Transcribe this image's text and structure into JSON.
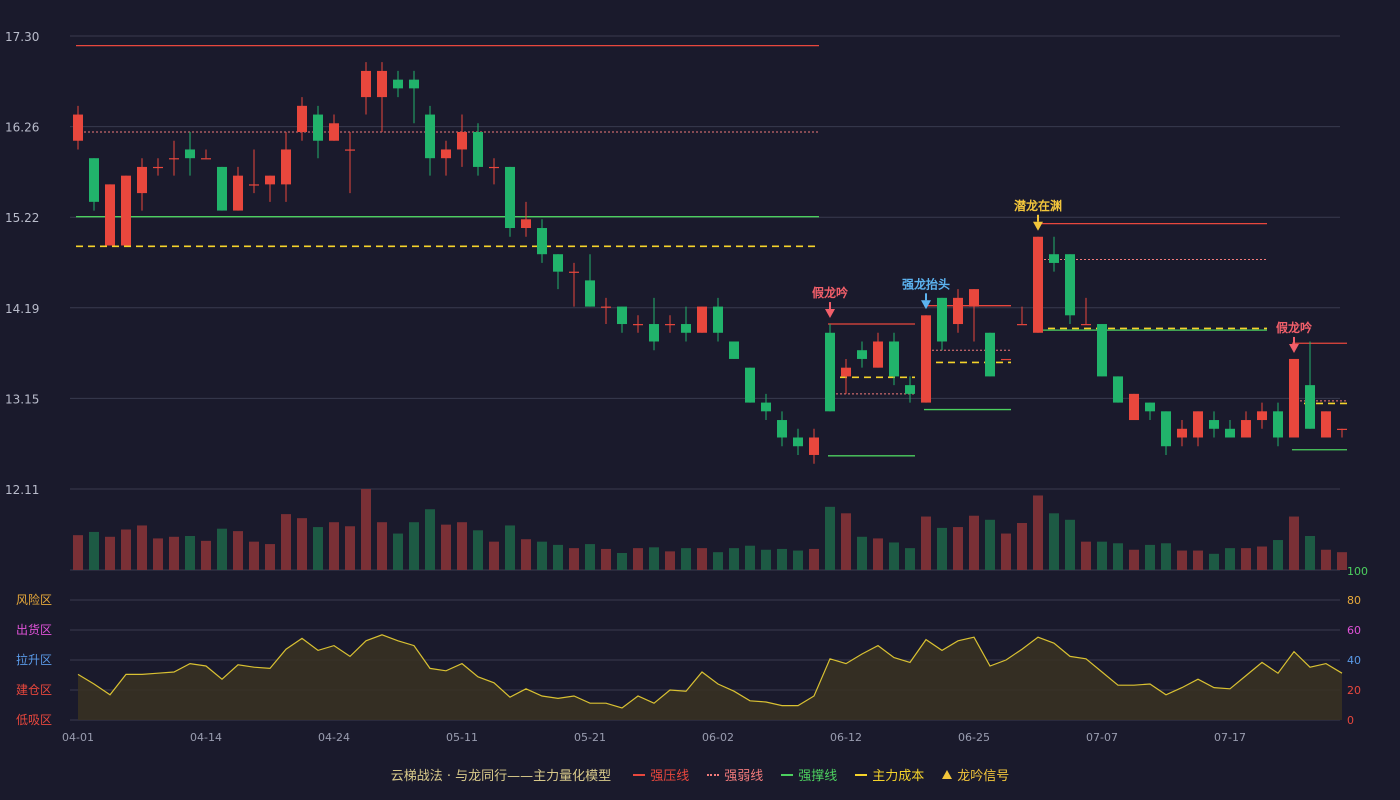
{
  "colors": {
    "background": "#1a1a2c",
    "grid": "#393a4e",
    "up": "#e8473d",
    "down": "#21b36b",
    "vol_up": "#7a3036",
    "vol_down": "#1d5a44",
    "strong_pressure": "#e8473d",
    "strong_weak": "#f07a7a",
    "support": "#4ccf5f",
    "cost": "#f5d32a",
    "oscillator": "#d9c132",
    "signal_fake": "#f25f6a",
    "signal_up": "#5cb3f0",
    "signal_hidden": "#f2c53b"
  },
  "chart_data": {
    "type": "candlestick",
    "price_axis": {
      "ticks": [
        "17.30",
        "16.26",
        "15.22",
        "14.19",
        "13.15",
        "12.11"
      ],
      "range": [
        12.11,
        17.3
      ]
    },
    "volume_axis": {
      "max_label": "100"
    },
    "oscillator_axis": {
      "ticks": [
        "80",
        "60",
        "40",
        "20",
        "0"
      ],
      "range": [
        0,
        100
      ],
      "zones": [
        "风险区",
        "出货区",
        "拉升区",
        "建仓区",
        "低吸区"
      ],
      "zone_colors": [
        "#e8a93a",
        "#e052d8",
        "#5a9ae8",
        "#e8473d",
        "#e8473d"
      ],
      "tick_colors": [
        "#e8a93a",
        "#e052d8",
        "#5a9ae8",
        "#e8473d",
        "#e8473d"
      ]
    },
    "date_labels": [
      {
        "i": 0,
        "label": "04-01"
      },
      {
        "i": 8,
        "label": "04-14"
      },
      {
        "i": 16,
        "label": "04-24"
      },
      {
        "i": 24,
        "label": "05-11"
      },
      {
        "i": 32,
        "label": "05-21"
      },
      {
        "i": 40,
        "label": "06-02"
      },
      {
        "i": 48,
        "label": "06-12"
      },
      {
        "i": 56,
        "label": "06-25"
      },
      {
        "i": 64,
        "label": "07-07"
      },
      {
        "i": 72,
        "label": "07-17"
      }
    ],
    "candles": [
      [
        16.1,
        16.4,
        16.5,
        16.0,
        43
      ],
      [
        15.9,
        15.4,
        15.9,
        15.3,
        47
      ],
      [
        14.9,
        15.6,
        15.6,
        14.9,
        41
      ],
      [
        14.9,
        15.7,
        15.7,
        14.9,
        50
      ],
      [
        15.5,
        15.8,
        15.9,
        15.3,
        55
      ],
      [
        15.8,
        15.8,
        15.9,
        15.7,
        39
      ],
      [
        15.9,
        15.9,
        16.1,
        15.7,
        41
      ],
      [
        16.0,
        15.9,
        16.2,
        15.7,
        42
      ],
      [
        15.9,
        15.9,
        16.0,
        15.9,
        36
      ],
      [
        15.8,
        15.3,
        15.8,
        15.3,
        51
      ],
      [
        15.3,
        15.7,
        15.8,
        15.3,
        48
      ],
      [
        15.6,
        15.6,
        16.0,
        15.5,
        35
      ],
      [
        15.6,
        15.7,
        15.7,
        15.4,
        32
      ],
      [
        15.6,
        16.0,
        16.2,
        15.4,
        69
      ],
      [
        16.2,
        16.5,
        16.6,
        16.1,
        64
      ],
      [
        16.4,
        16.1,
        16.5,
        15.9,
        53
      ],
      [
        16.1,
        16.3,
        16.4,
        16.1,
        59
      ],
      [
        16.0,
        16.0,
        16.2,
        15.5,
        54
      ],
      [
        16.6,
        16.9,
        17.0,
        16.4,
        100
      ],
      [
        16.6,
        16.9,
        17.0,
        16.2,
        59
      ],
      [
        16.8,
        16.7,
        16.9,
        16.6,
        45
      ],
      [
        16.8,
        16.7,
        16.9,
        16.3,
        59
      ],
      [
        16.4,
        15.9,
        16.5,
        15.7,
        75
      ],
      [
        15.9,
        16.0,
        16.1,
        15.7,
        56
      ],
      [
        16.0,
        16.2,
        16.4,
        15.8,
        59
      ],
      [
        16.2,
        15.8,
        16.3,
        15.7,
        49
      ],
      [
        15.8,
        15.8,
        15.9,
        15.6,
        35
      ],
      [
        15.8,
        15.1,
        15.8,
        15.0,
        55
      ],
      [
        15.1,
        15.2,
        15.4,
        15.0,
        38
      ],
      [
        15.1,
        14.8,
        15.2,
        14.7,
        35
      ],
      [
        14.8,
        14.6,
        14.8,
        14.4,
        31
      ],
      [
        14.6,
        14.6,
        14.7,
        14.2,
        27
      ],
      [
        14.5,
        14.2,
        14.8,
        14.2,
        32
      ],
      [
        14.2,
        14.2,
        14.3,
        14.0,
        26
      ],
      [
        14.2,
        14.0,
        14.2,
        13.9,
        21
      ],
      [
        14.0,
        14.0,
        14.1,
        13.9,
        27
      ],
      [
        14.0,
        13.8,
        14.3,
        13.7,
        28
      ],
      [
        14.0,
        14.0,
        14.1,
        13.9,
        23
      ],
      [
        14.0,
        13.9,
        14.2,
        13.8,
        27
      ],
      [
        13.9,
        14.2,
        14.2,
        13.9,
        27
      ],
      [
        14.2,
        13.9,
        14.3,
        13.8,
        22
      ],
      [
        13.8,
        13.6,
        13.8,
        13.6,
        27
      ],
      [
        13.5,
        13.1,
        13.5,
        13.1,
        30
      ],
      [
        13.1,
        13.0,
        13.2,
        12.9,
        25
      ],
      [
        12.9,
        12.7,
        13.0,
        12.6,
        26
      ],
      [
        12.7,
        12.6,
        12.8,
        12.5,
        24
      ],
      [
        12.5,
        12.7,
        12.8,
        12.4,
        26
      ],
      [
        13.9,
        13.0,
        14.0,
        13.0,
        78
      ],
      [
        13.4,
        13.5,
        13.6,
        13.2,
        70
      ],
      [
        13.7,
        13.6,
        13.8,
        13.5,
        41
      ],
      [
        13.5,
        13.8,
        13.9,
        13.5,
        39
      ],
      [
        13.8,
        13.4,
        13.9,
        13.3,
        34
      ],
      [
        13.3,
        13.2,
        13.4,
        13.1,
        27
      ],
      [
        13.1,
        14.1,
        14.1,
        13.1,
        66
      ],
      [
        14.3,
        13.8,
        14.3,
        13.7,
        52
      ],
      [
        14.0,
        14.3,
        14.4,
        13.9,
        53
      ],
      [
        14.2,
        14.4,
        14.4,
        13.8,
        67
      ],
      [
        13.9,
        13.4,
        13.9,
        13.4,
        62
      ],
      [
        13.6,
        13.6,
        13.6,
        13.6,
        45
      ],
      [
        14.0,
        14.0,
        14.2,
        14.0,
        58
      ],
      [
        13.9,
        15.0,
        15.0,
        13.9,
        92
      ],
      [
        14.8,
        14.7,
        15.0,
        14.6,
        70
      ],
      [
        14.8,
        14.1,
        14.8,
        14.0,
        62
      ],
      [
        14.0,
        14.0,
        14.3,
        14.0,
        35
      ],
      [
        14.0,
        13.4,
        14.0,
        13.4,
        35
      ],
      [
        13.4,
        13.1,
        13.4,
        13.1,
        33
      ],
      [
        12.9,
        13.2,
        13.2,
        12.9,
        25
      ],
      [
        13.1,
        13.0,
        13.1,
        12.9,
        31
      ],
      [
        13.0,
        12.6,
        13.0,
        12.5,
        33
      ],
      [
        12.7,
        12.8,
        12.9,
        12.6,
        24
      ],
      [
        12.7,
        13.0,
        13.0,
        12.6,
        24
      ],
      [
        12.9,
        12.8,
        13.0,
        12.7,
        20
      ],
      [
        12.8,
        12.7,
        12.9,
        12.7,
        27
      ],
      [
        12.7,
        12.9,
        13.0,
        12.7,
        27
      ],
      [
        12.9,
        13.0,
        13.1,
        12.8,
        29
      ],
      [
        13.0,
        12.7,
        13.1,
        12.6,
        37
      ],
      [
        12.7,
        13.6,
        13.6,
        12.7,
        66
      ],
      [
        13.3,
        12.8,
        13.8,
        12.8,
        42
      ],
      [
        12.7,
        13.0,
        13.0,
        12.7,
        25
      ],
      [
        12.8,
        12.8,
        12.8,
        12.7,
        22
      ]
    ],
    "oscillator": [
      38,
      30,
      21,
      38,
      38,
      39,
      40,
      47,
      45,
      34,
      46,
      44,
      43,
      59,
      68,
      58,
      62,
      53,
      66,
      71,
      66,
      62,
      43,
      41,
      47,
      36,
      31,
      19,
      26,
      20,
      18,
      20,
      14,
      14,
      10,
      20,
      14,
      25,
      24,
      40,
      30,
      24,
      16,
      15,
      12,
      12,
      20,
      51,
      47,
      55,
      62,
      52,
      48,
      67,
      58,
      66,
      69,
      45,
      50,
      59,
      69,
      64,
      53,
      51,
      40,
      29,
      29,
      30,
      21,
      27,
      34,
      27,
      26,
      37,
      48,
      39,
      57,
      44,
      47,
      39
    ],
    "levels": [
      {
        "kind": "strong_pressure",
        "from": 0,
        "to": 46,
        "y": 17.19
      },
      {
        "kind": "strong_weak",
        "from": 0,
        "to": 46,
        "y": 16.2
      },
      {
        "kind": "support",
        "from": 0,
        "to": 46,
        "y": 15.23
      },
      {
        "kind": "cost",
        "from": 0,
        "to": 46,
        "y": 14.89
      },
      {
        "kind": "strong_pressure",
        "from": 47,
        "to": 52,
        "y": 14.0
      },
      {
        "kind": "strong_weak",
        "from": 47,
        "to": 52,
        "y": 13.2
      },
      {
        "kind": "cost",
        "from": 47,
        "to": 52,
        "y": 13.39
      },
      {
        "kind": "support",
        "from": 47,
        "to": 52,
        "y": 12.49
      },
      {
        "kind": "strong_pressure",
        "from": 53,
        "to": 58,
        "y": 14.21
      },
      {
        "kind": "strong_weak",
        "from": 53,
        "to": 58,
        "y": 13.7
      },
      {
        "kind": "cost",
        "from": 53,
        "to": 58,
        "y": 13.56
      },
      {
        "kind": "support",
        "from": 53,
        "to": 58,
        "y": 13.02
      },
      {
        "kind": "strong_pressure",
        "from": 60,
        "to": 74,
        "y": 15.15
      },
      {
        "kind": "strong_weak",
        "from": 60,
        "to": 74,
        "y": 14.74
      },
      {
        "kind": "cost",
        "from": 60,
        "to": 74,
        "y": 13.95
      },
      {
        "kind": "support",
        "from": 60,
        "to": 74,
        "y": 13.93
      },
      {
        "kind": "strong_pressure",
        "from": 76,
        "to": 79,
        "y": 13.78
      },
      {
        "kind": "strong_weak",
        "from": 76,
        "to": 79,
        "y": 13.12
      },
      {
        "kind": "cost",
        "from": 76,
        "to": 79,
        "y": 13.09
      },
      {
        "kind": "support",
        "from": 76,
        "to": 79,
        "y": 12.56
      }
    ],
    "signals": [
      {
        "i": 47,
        "label": "假龙吟",
        "kind": "signal_fake"
      },
      {
        "i": 53,
        "label": "强龙抬头",
        "kind": "signal_up"
      },
      {
        "i": 60,
        "label": "潜龙在渊",
        "kind": "signal_hidden"
      },
      {
        "i": 76,
        "label": "假龙吟",
        "kind": "signal_fake"
      }
    ]
  },
  "legend": {
    "title": "云梯战法 · 与龙同行——主力量化模型",
    "items": [
      {
        "label": "强压线",
        "kind": "strong_pressure",
        "style": "solid"
      },
      {
        "label": "强弱线",
        "kind": "strong_weak",
        "style": "dotted"
      },
      {
        "label": "强撑线",
        "kind": "support",
        "style": "solid"
      },
      {
        "label": "主力成本",
        "kind": "cost",
        "style": "dashed"
      },
      {
        "label": "龙吟信号",
        "kind": "signal_hidden",
        "style": "triangle"
      }
    ]
  }
}
